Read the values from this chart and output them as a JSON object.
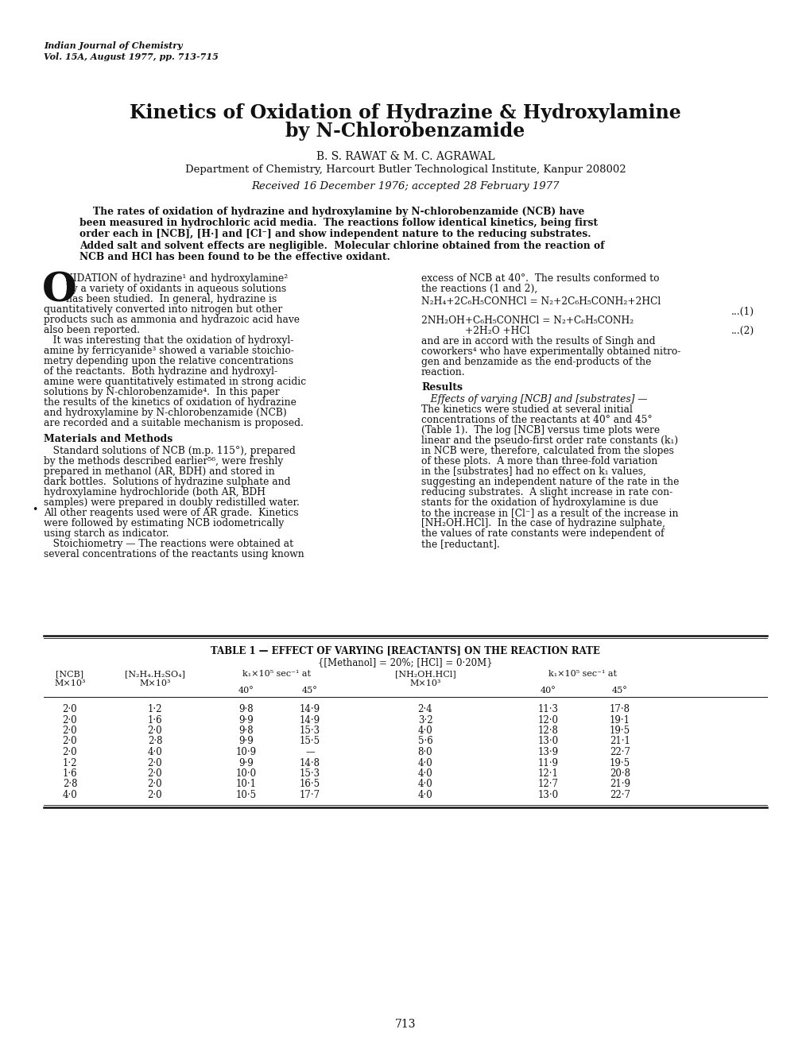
{
  "bg_color": "#ffffff",
  "journal_header_line1": "Indian Journal of Chemistry",
  "journal_header_line2": "Vol. 15A, August 1977, pp. 713-715",
  "title_line1": "Kinetics of Oxidation of Hydrazine & Hydroxylamine",
  "title_line2": "by N-Chlorobenzamide",
  "authors": "B. S. RAWAT & M. C. AGRAWAL",
  "affiliation": "Department of Chemistry, Harcourt Butler Technological Institute, Kanpur 208002",
  "received": "Received 16 December 1976; accepted 28 February 1977",
  "table_title": "TABLE 1 — EFFECT OF VARYING [REACTANTS] ON THE REACTION RATE",
  "table_condition": "{[Methanol] = 20%; [HCl] = 0·20M}",
  "table_data": [
    [
      "2·0",
      "1·2",
      "9·8",
      "14·9",
      "2·4",
      "11·3",
      "17·8"
    ],
    [
      "2·0",
      "1·6",
      "9·9",
      "14·9",
      "3·2",
      "12·0",
      "19·1"
    ],
    [
      "2·0",
      "2·0",
      "9·8",
      "15·3",
      "4·0",
      "12·8",
      "19·5"
    ],
    [
      "2·0",
      "2·8",
      "9·9",
      "15·5",
      "5·6",
      "13·0",
      "21·1"
    ],
    [
      "2·0",
      "4·0",
      "10·9",
      "—",
      "8·0",
      "13·9",
      "22·7"
    ],
    [
      "1·2",
      "2·0",
      "9·9",
      "14·8",
      "4·0",
      "11·9",
      "19·5"
    ],
    [
      "1·6",
      "2·0",
      "10·0",
      "15·3",
      "4·0",
      "12·1",
      "20·8"
    ],
    [
      "2·8",
      "2·0",
      "10·1",
      "16·5",
      "4·0",
      "12·7",
      "21·9"
    ],
    [
      "4·0",
      "2·0",
      "10·5",
      "17·7",
      "4·0",
      "13·0",
      "22·7"
    ]
  ],
  "page_number": "713"
}
